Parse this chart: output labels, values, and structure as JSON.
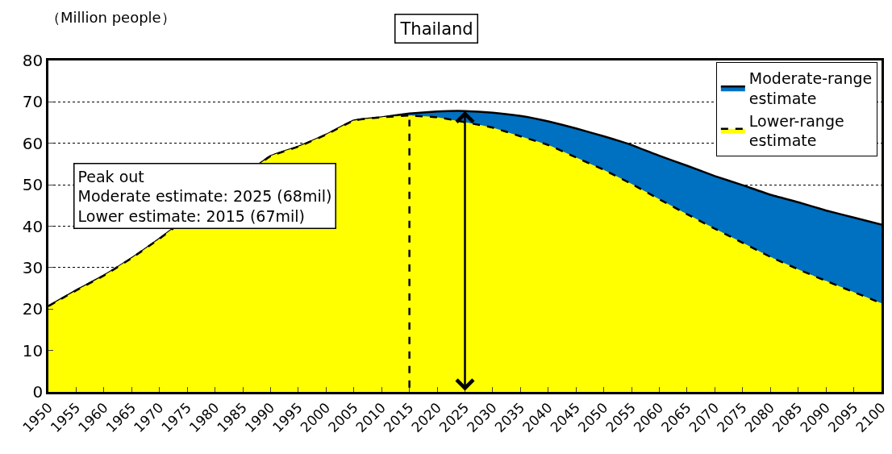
{
  "chart_data": {
    "type": "area",
    "title": "Thailand",
    "ylabel": "（Million people）",
    "categories": [
      "1950",
      "1955",
      "1960",
      "1965",
      "1970",
      "1975",
      "1980",
      "1985",
      "1990",
      "1995",
      "2000",
      "2005",
      "2010",
      "2015",
      "2020",
      "2025",
      "2030",
      "2035",
      "2040",
      "2045",
      "2050",
      "2055",
      "2060",
      "2065",
      "2070",
      "2075",
      "2080",
      "2085",
      "2090",
      "2095",
      "2100"
    ],
    "series": [
      {
        "name": "Moderate-range estimate",
        "color": "#0070c0",
        "line_style": "solid",
        "values": [
          20.7,
          24.5,
          28.1,
          32.3,
          37,
          null,
          null,
          null,
          56.9,
          59.2,
          62.1,
          65.5,
          66.3,
          67.2,
          67.7,
          67.8,
          67.4,
          66.6,
          65.3,
          63.6,
          61.7,
          59.6,
          57.0,
          54.6,
          52.1,
          49.9,
          47.6,
          45.8,
          43.8,
          42.1,
          40.4
        ]
      },
      {
        "name": "Lower-range estimate",
        "color": "#ffff00",
        "line_style": "dashed",
        "values": [
          20.7,
          24.5,
          28.1,
          32.3,
          37,
          null,
          null,
          null,
          56.9,
          59.2,
          62.1,
          65.5,
          66.3,
          66.7,
          66.3,
          65.1,
          63.8,
          61.7,
          59.6,
          56.6,
          53.6,
          50.2,
          46.5,
          42.9,
          39.4,
          36.0,
          32.6,
          29.6,
          26.8,
          24.1,
          21.4
        ]
      }
    ],
    "ylim": [
      0,
      80
    ],
    "yticks": [
      0,
      10,
      20,
      30,
      40,
      50,
      60,
      70,
      80
    ],
    "grid": "y",
    "legend": "top right",
    "annotations": [
      "Peak out\nModerate estimate: 2025 (68mil)\nLower estimate: 2015 (67mil)"
    ]
  }
}
